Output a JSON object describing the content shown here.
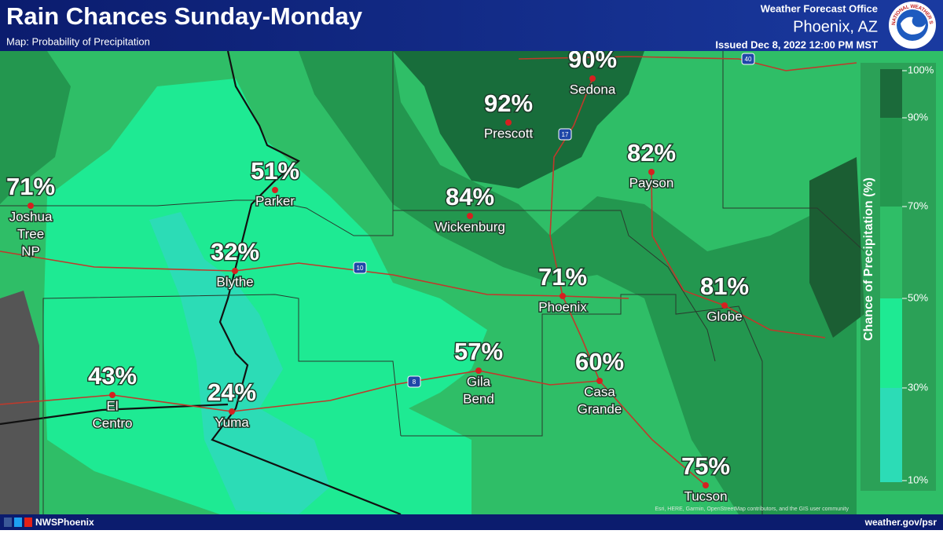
{
  "header": {
    "title": "Rain Chances Sunday-Monday",
    "subtitle": "Map: Probability of Precipitation",
    "office": "Weather Forecast Office",
    "location": "Phoenix, AZ",
    "issued": "Issued Dec 8, 2022 12:00 PM MST",
    "logo_text": "NATIONAL WEATHER SERVICE"
  },
  "cities": [
    {
      "name": [
        "Sedona"
      ],
      "pop": "90%"
    },
    {
      "name": [
        "Prescott"
      ],
      "pop": "92%"
    },
    {
      "name": [
        "Payson"
      ],
      "pop": "82%"
    },
    {
      "name": [
        "Parker"
      ],
      "pop": "51%"
    },
    {
      "name": [
        "Joshua",
        "Tree",
        "NP"
      ],
      "pop": "71%"
    },
    {
      "name": [
        "Wickenburg"
      ],
      "pop": "84%"
    },
    {
      "name": [
        "Blythe"
      ],
      "pop": "32%"
    },
    {
      "name": [
        "Phoenix"
      ],
      "pop": "71%"
    },
    {
      "name": [
        "Globe"
      ],
      "pop": "81%"
    },
    {
      "name": [
        "Gila",
        "Bend"
      ],
      "pop": "57%"
    },
    {
      "name": [
        "Casa",
        "Grande"
      ],
      "pop": "60%"
    },
    {
      "name": [
        "El",
        "Centro"
      ],
      "pop": "43%"
    },
    {
      "name": [
        "Yuma"
      ],
      "pop": "24%"
    },
    {
      "name": [
        "Tucson"
      ],
      "pop": "75%"
    }
  ],
  "highways": [
    "40",
    "17",
    "10",
    "8"
  ],
  "legend": {
    "title": "Chance of Precipitation (%)",
    "ticks": [
      "100%",
      "90%",
      "70%",
      "50%",
      "30%",
      "10%"
    ]
  },
  "attribution": "Esri, HERE, Garmin, OpenStreetMap contributors, and the GIS user community",
  "footer": {
    "handle": "NWSPhoenix",
    "url": "weather.gov/psr"
  }
}
